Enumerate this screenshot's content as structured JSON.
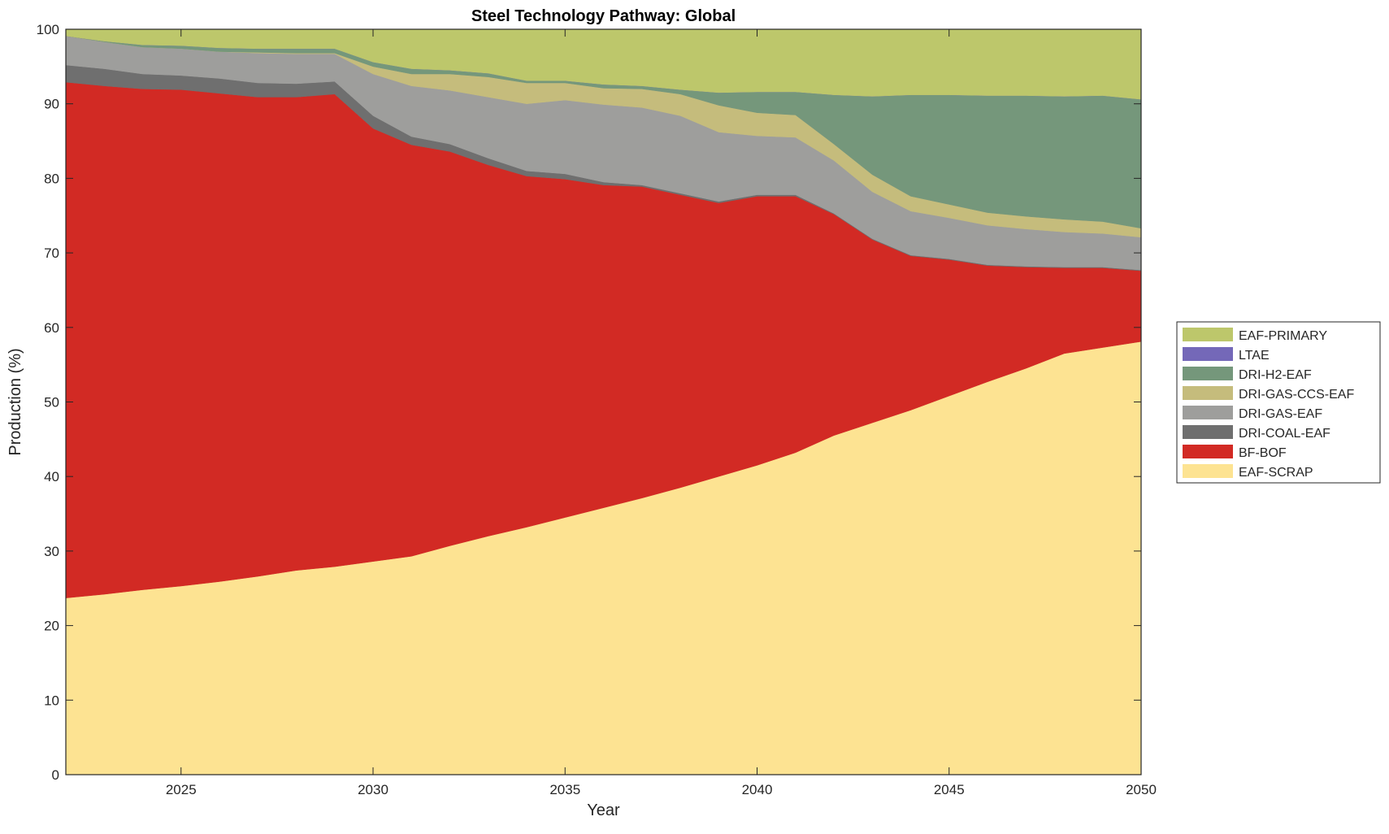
{
  "chart_data": {
    "type": "area",
    "stacked": true,
    "title": "Steel Technology Pathway: Global",
    "xlabel": "Year",
    "ylabel": "Production (%)",
    "xlim": [
      2022,
      2050
    ],
    "ylim": [
      0,
      100
    ],
    "xticks": [
      2025,
      2030,
      2035,
      2040,
      2045,
      2050
    ],
    "yticks": [
      0,
      10,
      20,
      30,
      40,
      50,
      60,
      70,
      80,
      90,
      100
    ],
    "grid": false,
    "legend_position": "right",
    "x": [
      2022,
      2023,
      2024,
      2025,
      2026,
      2027,
      2028,
      2029,
      2030,
      2031,
      2032,
      2033,
      2034,
      2035,
      2036,
      2037,
      2038,
      2039,
      2040,
      2041,
      2042,
      2043,
      2044,
      2045,
      2046,
      2047,
      2048,
      2049,
      2050
    ],
    "series": [
      {
        "name": "EAF-SCRAP",
        "color": "#fde392",
        "values": [
          23.7,
          24.2,
          24.8,
          25.3,
          25.9,
          26.6,
          27.4,
          27.9,
          28.6,
          29.3,
          30.7,
          32.0,
          33.2,
          34.5,
          35.8,
          37.1,
          38.5,
          40.0,
          41.5,
          43.2,
          45.5,
          47.2,
          48.9,
          50.8,
          52.7,
          54.5,
          56.5,
          57.3,
          58.1
        ]
      },
      {
        "name": "BF-BOF",
        "color": "#d22a24",
        "values": [
          69.2,
          68.2,
          67.2,
          66.6,
          65.5,
          64.3,
          63.5,
          63.4,
          58.1,
          55.2,
          52.9,
          49.8,
          47.1,
          45.4,
          43.3,
          41.8,
          39.3,
          36.7,
          36.1,
          34.4,
          29.7,
          24.6,
          20.7,
          18.3,
          15.6,
          13.6,
          11.5,
          10.7,
          9.5
        ]
      },
      {
        "name": "DRI-COAL-EAF",
        "color": "#6f6f6f",
        "values": [
          2.3,
          2.3,
          2.0,
          1.9,
          2.0,
          1.9,
          1.8,
          1.7,
          1.7,
          1.1,
          1.0,
          0.9,
          0.7,
          0.7,
          0.4,
          0.2,
          0.2,
          0.2,
          0.2,
          0.2,
          0.1,
          0.1,
          0.1,
          0.1,
          0.1,
          0.1,
          0.1,
          0.1,
          0.1
        ]
      },
      {
        "name": "DRI-GAS-EAF",
        "color": "#9e9e9c",
        "values": [
          3.9,
          3.6,
          3.6,
          3.6,
          3.6,
          4.0,
          4.0,
          3.7,
          5.6,
          6.8,
          7.2,
          8.2,
          9.0,
          9.9,
          10.4,
          10.4,
          10.4,
          9.3,
          7.9,
          7.7,
          7.1,
          6.3,
          5.9,
          5.5,
          5.3,
          5.0,
          4.7,
          4.5,
          4.4
        ]
      },
      {
        "name": "DRI-GAS-CCS-EAF",
        "color": "#c5bc7c",
        "values": [
          0,
          0,
          0,
          0,
          0,
          0.1,
          0.1,
          0.1,
          1.0,
          1.6,
          2.2,
          2.7,
          2.8,
          2.3,
          2.2,
          2.5,
          2.9,
          3.6,
          3.1,
          3.0,
          2.2,
          2.3,
          2.0,
          1.8,
          1.7,
          1.7,
          1.7,
          1.6,
          1.2
        ]
      },
      {
        "name": "DRI-H2-EAF",
        "color": "#75977b",
        "values": [
          0,
          0.1,
          0.3,
          0.4,
          0.5,
          0.5,
          0.6,
          0.6,
          0.6,
          0.7,
          0.5,
          0.5,
          0.3,
          0.3,
          0.5,
          0.4,
          0.6,
          1.7,
          2.8,
          3.1,
          6.6,
          10.5,
          13.6,
          14.7,
          15.7,
          16.2,
          16.5,
          16.9,
          17.3
        ]
      },
      {
        "name": "LTAE",
        "color": "#7468b8",
        "values": [
          0,
          0,
          0,
          0,
          0,
          0,
          0,
          0,
          0,
          0,
          0,
          0,
          0,
          0,
          0,
          0,
          0,
          0,
          0,
          0,
          0,
          0,
          0,
          0,
          0,
          0,
          0,
          0,
          0
        ]
      },
      {
        "name": "EAF-PRIMARY",
        "color": "#bdc76b",
        "values": [
          0.9,
          1.6,
          2.1,
          2.2,
          2.5,
          2.6,
          2.6,
          2.6,
          4.4,
          5.3,
          5.5,
          5.9,
          6.9,
          6.9,
          7.4,
          7.6,
          8.1,
          8.5,
          8.4,
          8.4,
          8.8,
          9.0,
          8.8,
          8.8,
          8.9,
          8.9,
          9.0,
          8.9,
          9.4
        ]
      }
    ]
  }
}
